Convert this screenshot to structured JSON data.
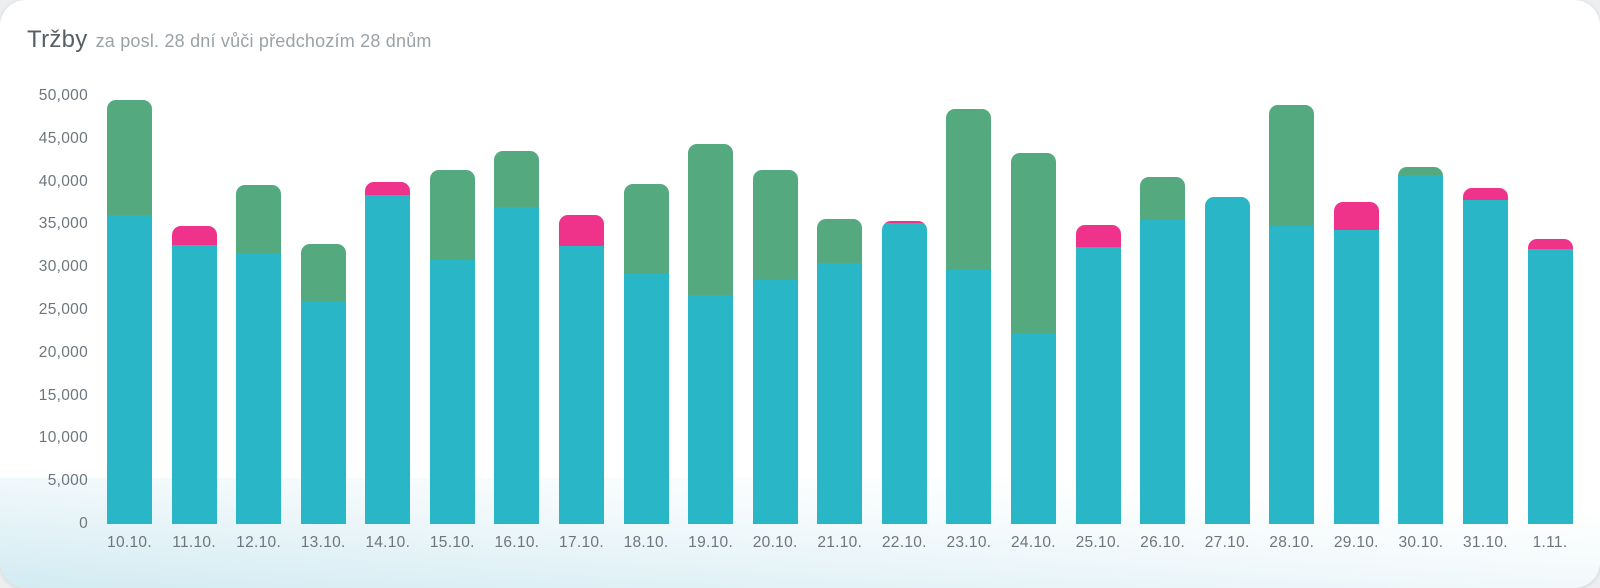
{
  "header": {
    "title": "Tržby",
    "subtitle": "za posl. 28 dní vůči předchozím 28 dnům"
  },
  "colors": {
    "current_period": "#29b6c6",
    "increase": "#55a97f",
    "decrease": "#ef338b",
    "title_text": "#575f66",
    "subtitle_text": "#9aa2a8",
    "axis_text": "#6e767d",
    "card_background": "#ffffff",
    "bottom_wash": "#cfe7ef"
  },
  "chart_data": {
    "type": "bar",
    "stacked": true,
    "title": "Tržby",
    "subtitle": "za posl. 28 dní vůči předchozím 28 dnům",
    "xlabel": "",
    "ylabel": "",
    "ylim": [
      0,
      50000
    ],
    "y_tick_step": 5000,
    "y_tick_labels": [
      "0",
      "5,000",
      "10,000",
      "15,000",
      "20,000",
      "25,000",
      "30,000",
      "35,000",
      "40,000",
      "45,000",
      "50,000"
    ],
    "grid": false,
    "legend": "none",
    "categories": [
      "10.10.",
      "11.10.",
      "12.10.",
      "13.10.",
      "14.10.",
      "15.10.",
      "16.10.",
      "17.10.",
      "18.10.",
      "19.10.",
      "20.10.",
      "21.10.",
      "22.10.",
      "23.10.",
      "24.10.",
      "25.10.",
      "26.10.",
      "27.10.",
      "28.10.",
      "29.10.",
      "30.10.",
      "31.10.",
      "1.11."
    ],
    "series": [
      {
        "name": "current-period-revenue",
        "color": "#29b6c6",
        "values": [
          36100,
          32600,
          31700,
          26000,
          38400,
          30800,
          37000,
          32500,
          29300,
          26800,
          28500,
          30500,
          35200,
          29700,
          22300,
          32400,
          35500,
          38200,
          34800,
          34400,
          40800,
          37800,
          32100
        ]
      },
      {
        "name": "difference-vs-previous-28-days",
        "color_up": "#55a97f",
        "color_down": "#ef338b",
        "values": [
          13400,
          2200,
          7900,
          6700,
          1600,
          10600,
          6600,
          3600,
          10400,
          17600,
          12900,
          5100,
          200,
          18800,
          21100,
          2500,
          5000,
          0,
          14100,
          3200,
          900,
          1400,
          1200
        ],
        "directions": [
          "up",
          "down",
          "up",
          "up",
          "down",
          "up",
          "up",
          "down",
          "up",
          "up",
          "up",
          "up",
          "down",
          "up",
          "up",
          "down",
          "up",
          "none",
          "up",
          "down",
          "up",
          "down",
          "down"
        ]
      }
    ],
    "bar_totals": [
      49500,
      34800,
      39600,
      32700,
      40000,
      41400,
      43600,
      36100,
      39700,
      44400,
      41400,
      35600,
      35400,
      48500,
      43400,
      34900,
      40500,
      38200,
      48900,
      37600,
      41700,
      39200,
      33300
    ]
  }
}
